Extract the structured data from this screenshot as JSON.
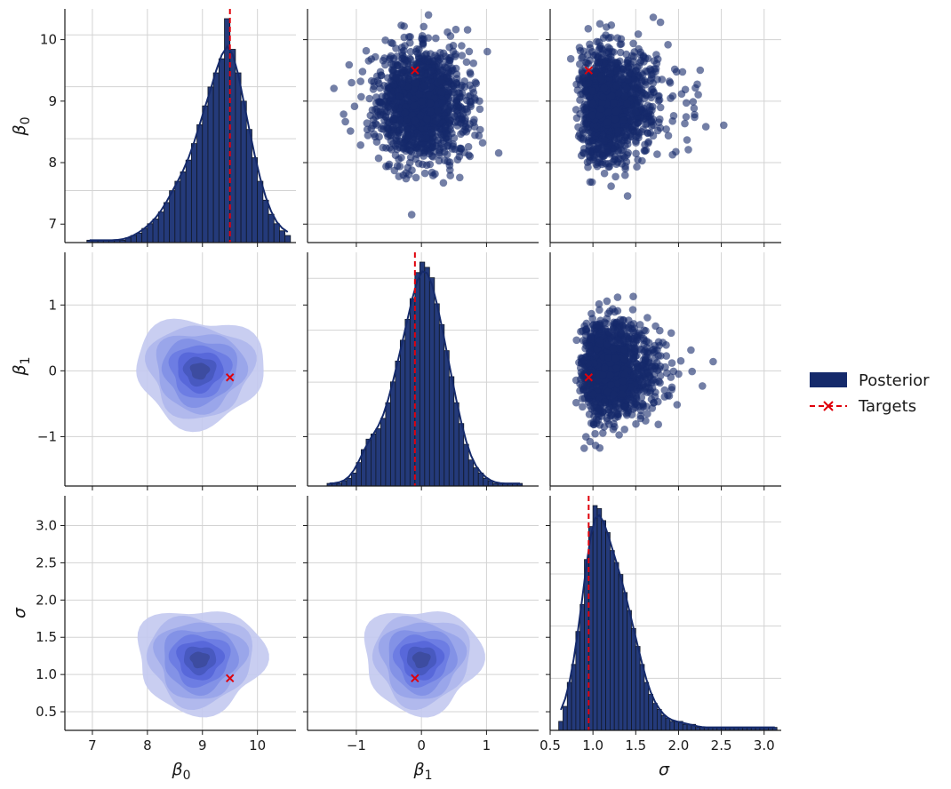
{
  "chart_data": {
    "type": "pairplot",
    "variables": [
      {
        "key": "b0",
        "label": "β",
        "sub": "0",
        "range": [
          6.5,
          10.7
        ],
        "ticks": [
          7,
          8,
          9,
          10
        ],
        "tick_labels": [
          "7",
          "8",
          "9",
          "10"
        ],
        "target": 9.5,
        "mean": 8.95,
        "sd": 0.45
      },
      {
        "key": "b1",
        "label": "β",
        "sub": "1",
        "range": [
          -1.75,
          1.8
        ],
        "ticks": [
          -1,
          0,
          1
        ],
        "tick_labels": [
          "−1",
          "0",
          "1"
        ],
        "target": -0.1,
        "mean": 0.0,
        "sd": 0.35
      },
      {
        "key": "sigma",
        "label": "σ",
        "sub": "",
        "range": [
          0.55,
          3.2
        ],
        "ticks": [
          0.5,
          1.0,
          1.5,
          2.0,
          2.5,
          3.0
        ],
        "tick_labels": [
          "0.5",
          "1.0",
          "1.5",
          "2.0",
          "2.5",
          "3.0"
        ],
        "target": 0.95,
        "mean": 1.2,
        "sd": 0.3
      }
    ],
    "sigma_axis_ticks": [
      0.5,
      1.0,
      1.5,
      2.0,
      2.5,
      3.0
    ],
    "sigma_axis_tick_labels": [
      "0.5",
      "1.0",
      "1.5",
      "2.0",
      "2.5",
      "3.0"
    ],
    "sigma_x_range": [
      0.5,
      3.2
    ],
    "sigma_y_range": [
      0.25,
      3.4
    ],
    "b0_y_ticks": [
      7,
      8,
      9,
      10
    ],
    "b0_y_tick_labels": [
      "7",
      "8",
      "9",
      "10"
    ],
    "b0_y_range": [
      6.7,
      10.5
    ],
    "b0_x_range": [
      6.5,
      10.7
    ],
    "b1_y_range": [
      -1.75,
      1.8
    ],
    "b1_x_range": [
      -1.75,
      1.8
    ],
    "histograms": {
      "b0": {
        "bin_start": 6.9,
        "bin_width": 0.1,
        "counts": [
          1,
          1,
          1,
          1,
          1,
          1,
          1,
          2,
          3,
          4,
          6,
          8,
          10,
          13,
          17,
          22,
          26,
          30,
          35,
          42,
          50,
          58,
          66,
          72,
          78,
          95,
          82,
          72,
          60,
          48,
          36,
          26,
          18,
          12,
          8,
          5,
          3
        ],
        "max": 95
      },
      "b1": {
        "bin_start": -1.45,
        "bin_width": 0.075,
        "counts": [
          1,
          1,
          1,
          2,
          3,
          5,
          9,
          14,
          18,
          20,
          22,
          26,
          32,
          40,
          48,
          56,
          64,
          72,
          82,
          86,
          84,
          80,
          70,
          62,
          52,
          42,
          32,
          24,
          16,
          10,
          7,
          5,
          3,
          2,
          1,
          1,
          1,
          1,
          1,
          1
        ],
        "max": 86
      },
      "sigma": {
        "bin_start": 0.6,
        "bin_width": 0.05,
        "counts": [
          3,
          8,
          16,
          22,
          33,
          42,
          57,
          68,
          75,
          74,
          70,
          66,
          60,
          56,
          52,
          46,
          40,
          34,
          28,
          22,
          16,
          12,
          9,
          7,
          5,
          4,
          3,
          3,
          3,
          2,
          2,
          2,
          1,
          1,
          1,
          1,
          1,
          1,
          1,
          1,
          1,
          1,
          1,
          1,
          1,
          1,
          1,
          1,
          1,
          1,
          1
        ],
        "max": 75
      }
    },
    "scatter_n": 1400,
    "series": [
      {
        "name": "Posterior",
        "color": "#152a6b"
      },
      {
        "name": "Targets",
        "color": "#e0000a"
      }
    ],
    "grid": true,
    "legend_position": "right",
    "contour_colors": [
      "#c3c9ef",
      "#aeb7ec",
      "#98a4e9",
      "#8190e6",
      "#6a7be2",
      "#5566d8",
      "#4758bd",
      "#3c4a9c"
    ]
  }
}
